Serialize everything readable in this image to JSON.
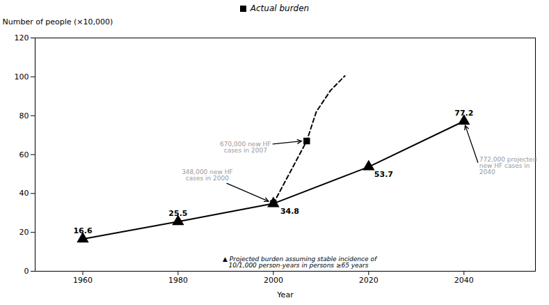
{
  "chart_data": {
    "type": "line",
    "xlabel": "Year",
    "ylabel": "Number of people (×10,000)",
    "xlim": [
      1950,
      2055
    ],
    "ylim": [
      0,
      120
    ],
    "xticks": [
      1960,
      1980,
      2000,
      2020,
      2040
    ],
    "yticks": [
      0,
      20,
      40,
      60,
      80,
      100,
      120
    ],
    "grid": false,
    "legend": "top",
    "series": [
      {
        "x": [
          1960,
          1980,
          2000,
          2020,
          2040
        ],
        "values": [
          16.6,
          25.5,
          34.8,
          53.7,
          77.2
        ],
        "color": "#000000",
        "marker": "triangle",
        "line_style": "solid",
        "data_labels": true
      },
      {
        "x": [
          2000,
          2007,
          2009,
          2012,
          2015
        ],
        "values": [
          34.8,
          67.0,
          82.0,
          93.0,
          100.5
        ],
        "color": "#000000",
        "marker": "none",
        "line_style": "dashed"
      },
      {
        "name": "Actual burden",
        "x": [
          2000,
          2007
        ],
        "values": [
          34.8,
          67.0
        ],
        "color": "#000000",
        "marker": "square",
        "line_style": "none"
      }
    ],
    "annotations": [
      {
        "text": "348,000 new HF\ncases in 2000",
        "x": 2000,
        "y": 34.8,
        "color": "#999999"
      },
      {
        "text": "670,000 new HF\ncases in 2007",
        "x": 2007,
        "y": 67.0,
        "color": "#999999"
      },
      {
        "text": "772,000 projected\nnew HF cases in\n2040",
        "x": 2040,
        "y": 77.2,
        "color": "#999999"
      },
      {
        "text": "▲ Projected burden assuming stable incidence of\n   10/1,000 person-years in persons ≥65 years",
        "color": "#000000"
      }
    ]
  }
}
